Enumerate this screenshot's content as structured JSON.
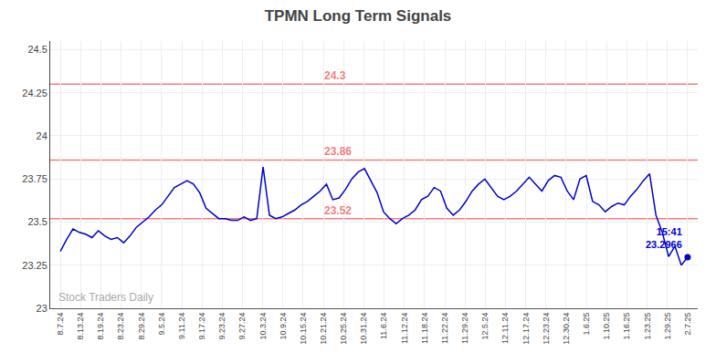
{
  "chart_data": {
    "type": "line",
    "title": "TPMN Long Term Signals",
    "color": "#0000cc",
    "grid": true,
    "x": [
      0,
      0.3131,
      0.6263,
      0.9394,
      1.2525,
      1.5657,
      1.8788,
      2.1919,
      2.5051,
      2.8182,
      3.1313,
      3.4444,
      3.7576,
      4.0707,
      4.3838,
      4.697,
      5.0101,
      5.3232,
      5.6364,
      5.9495,
      6.2626,
      6.5758,
      6.8889,
      7.202,
      7.5152,
      7.8283,
      8.1414,
      8.4545,
      8.7677,
      9.0808,
      9.3939,
      9.7071,
      10.0202,
      10.3333,
      10.6465,
      10.9596,
      11.2727,
      11.5859,
      11.899,
      12.2121,
      12.5253,
      12.8384,
      13.1515,
      13.4646,
      13.7778,
      14.0909,
      14.404,
      14.7172,
      15.0303,
      15.3434,
      15.6566,
      15.9697,
      16.2828,
      16.596,
      16.9091,
      17.2222,
      17.5354,
      17.8485,
      18.1616,
      18.4747,
      18.7879,
      19.101,
      19.4141,
      19.7273,
      20.0404,
      20.3535,
      20.6667,
      20.9798,
      21.2929,
      21.6061,
      21.9192,
      22.2323,
      22.5455,
      22.8586,
      23.1717,
      23.4848,
      23.798,
      24.1111,
      24.4242,
      24.7374,
      25.0505,
      25.3636,
      25.6768,
      25.9899,
      26.303,
      26.6162,
      26.9293,
      27.2424,
      27.5556,
      27.8687,
      28.1818,
      28.4949,
      28.8081,
      29.1212,
      29.4343,
      29.7475,
      30.0606,
      30.3737,
      30.6869,
      31
    ],
    "values": [
      23.33,
      23.4,
      23.46,
      23.44,
      23.43,
      23.41,
      23.45,
      23.42,
      23.4,
      23.41,
      23.38,
      23.42,
      23.47,
      23.5,
      23.53,
      23.57,
      23.6,
      23.65,
      23.7,
      23.72,
      23.74,
      23.72,
      23.67,
      23.58,
      23.55,
      23.52,
      23.52,
      23.51,
      23.51,
      23.53,
      23.51,
      23.52,
      23.82,
      23.54,
      23.52,
      23.53,
      23.55,
      23.57,
      23.6,
      23.62,
      23.65,
      23.68,
      23.72,
      23.63,
      23.64,
      23.69,
      23.75,
      23.79,
      23.81,
      23.74,
      23.67,
      23.56,
      23.52,
      23.49,
      23.52,
      23.54,
      23.57,
      23.63,
      23.65,
      23.7,
      23.68,
      23.58,
      23.54,
      23.57,
      23.62,
      23.68,
      23.72,
      23.75,
      23.7,
      23.65,
      23.63,
      23.65,
      23.68,
      23.72,
      23.76,
      23.72,
      23.68,
      23.74,
      23.77,
      23.76,
      23.68,
      23.63,
      23.75,
      23.77,
      23.62,
      23.6,
      23.56,
      23.59,
      23.61,
      23.6,
      23.65,
      23.69,
      23.74,
      23.78,
      23.54,
      23.44,
      23.3,
      23.36,
      23.25,
      23.2966
    ],
    "xlim": [
      -0.5,
      31.5
    ],
    "xticks": [
      {
        "value": 0,
        "label": "8.7.24"
      },
      {
        "value": 1,
        "label": "8.13.24"
      },
      {
        "value": 2,
        "label": "8.19.24"
      },
      {
        "value": 3,
        "label": "8.23.24"
      },
      {
        "value": 4,
        "label": "8.29.24"
      },
      {
        "value": 5,
        "label": "9.5.24"
      },
      {
        "value": 6,
        "label": "9.11.24"
      },
      {
        "value": 7,
        "label": "9.17.24"
      },
      {
        "value": 8,
        "label": "9.23.24"
      },
      {
        "value": 9,
        "label": "9.27.24"
      },
      {
        "value": 10,
        "label": "10.3.24"
      },
      {
        "value": 11,
        "label": "10.9.24"
      },
      {
        "value": 12,
        "label": "10.15.24"
      },
      {
        "value": 13,
        "label": "10.21.24"
      },
      {
        "value": 14,
        "label": "10.25.24"
      },
      {
        "value": 15,
        "label": "10.31.24"
      },
      {
        "value": 16,
        "label": "11.6.24"
      },
      {
        "value": 17,
        "label": "11.12.24"
      },
      {
        "value": 18,
        "label": "11.18.24"
      },
      {
        "value": 19,
        "label": "11.22.24"
      },
      {
        "value": 20,
        "label": "11.29.24"
      },
      {
        "value": 21,
        "label": "12.5.24"
      },
      {
        "value": 22,
        "label": "12.11.24"
      },
      {
        "value": 23,
        "label": "12.17.24"
      },
      {
        "value": 24,
        "label": "12.23.24"
      },
      {
        "value": 25,
        "label": "12.30.24"
      },
      {
        "value": 26,
        "label": "1.6.25"
      },
      {
        "value": 27,
        "label": "1.10.25"
      },
      {
        "value": 28,
        "label": "1.16.25"
      },
      {
        "value": 29,
        "label": "1.23.25"
      },
      {
        "value": 30,
        "label": "1.29.25"
      },
      {
        "value": 31,
        "label": "2.7.25"
      }
    ],
    "ylim": [
      23,
      24.55
    ],
    "yticks": [
      23,
      23.25,
      23.5,
      23.75,
      24,
      24.25,
      24.5
    ],
    "hlines": [
      {
        "value": 24.3,
        "label": "24.3",
        "color": "#f08080"
      },
      {
        "value": 23.86,
        "label": "23.86",
        "color": "#f08080"
      },
      {
        "value": 23.52,
        "label": "23.52",
        "color": "#f08080"
      }
    ],
    "annotations": [
      "15:41",
      "23.2966"
    ],
    "watermark": "Stock Traders Daily"
  }
}
